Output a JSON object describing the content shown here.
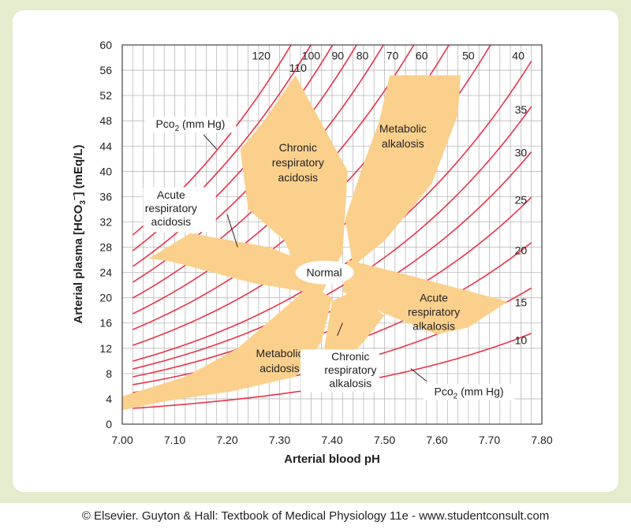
{
  "chart_data": {
    "type": "line",
    "xlabel": "Arterial blood pH",
    "ylabel_main": "Arterial plasma [HCO",
    "ylabel_sub": "3",
    "ylabel_sup": "–",
    "ylabel_end": "] (mEq/L)",
    "xlim": [
      7.0,
      7.8
    ],
    "ylim": [
      0,
      60
    ],
    "x_ticks": [
      "7.00",
      "7.10",
      "7.20",
      "7.30",
      "7.40",
      "7.50",
      "7.60",
      "7.70",
      "7.80"
    ],
    "y_ticks": [
      "0",
      "4",
      "8",
      "12",
      "16",
      "20",
      "24",
      "28",
      "32",
      "36",
      "40",
      "44",
      "48",
      "52",
      "56",
      "60"
    ],
    "grid": true,
    "pco2_isobars": [
      10,
      15,
      20,
      25,
      30,
      35,
      40,
      50,
      60,
      70,
      80,
      90,
      100,
      110,
      120
    ],
    "pco2_labels": [
      "120",
      "110",
      "100",
      "90",
      "80",
      "70",
      "60",
      "50",
      "40",
      "35",
      "30",
      "25",
      "20",
      "15",
      "10"
    ],
    "pco2_top_label": "Pco",
    "pco2_top_label_sub": "2",
    "pco2_top_label_end": " (mm Hg)",
    "pco2_bottom_label": "Pco",
    "pco2_bottom_label_sub": "2",
    "pco2_bottom_label_end": " (mm Hg)",
    "regions": [
      {
        "name": "Normal",
        "lines": [
          "Normal"
        ]
      },
      {
        "name": "Chronic respiratory acidosis",
        "lines": [
          "Chronic",
          "respiratory",
          "acidosis"
        ]
      },
      {
        "name": "Metabolic alkalosis",
        "lines": [
          "Metabolic",
          "alkalosis"
        ]
      },
      {
        "name": "Acute respiratory acidosis",
        "lines": [
          "Acute",
          "respiratory",
          "acidosis"
        ]
      },
      {
        "name": "Acute respiratory alkalosis",
        "lines": [
          "Acute",
          "respiratory",
          "alkalosis"
        ]
      },
      {
        "name": "Metabolic acidosis",
        "lines": [
          "Metabolic",
          "acidosis"
        ]
      },
      {
        "name": "Chronic respiratory alkalosis",
        "lines": [
          "Chronic",
          "respiratory",
          "alkalosis"
        ]
      }
    ]
  },
  "colors": {
    "isobar": "#e8344a",
    "region_fill": "#fbd08c",
    "grid": "#b8b8b8",
    "frame": "#e4eccd"
  },
  "copyright": "© Elsevier. Guyton & Hall: Textbook of Medical Physiology 11e - www.studentconsult.com"
}
